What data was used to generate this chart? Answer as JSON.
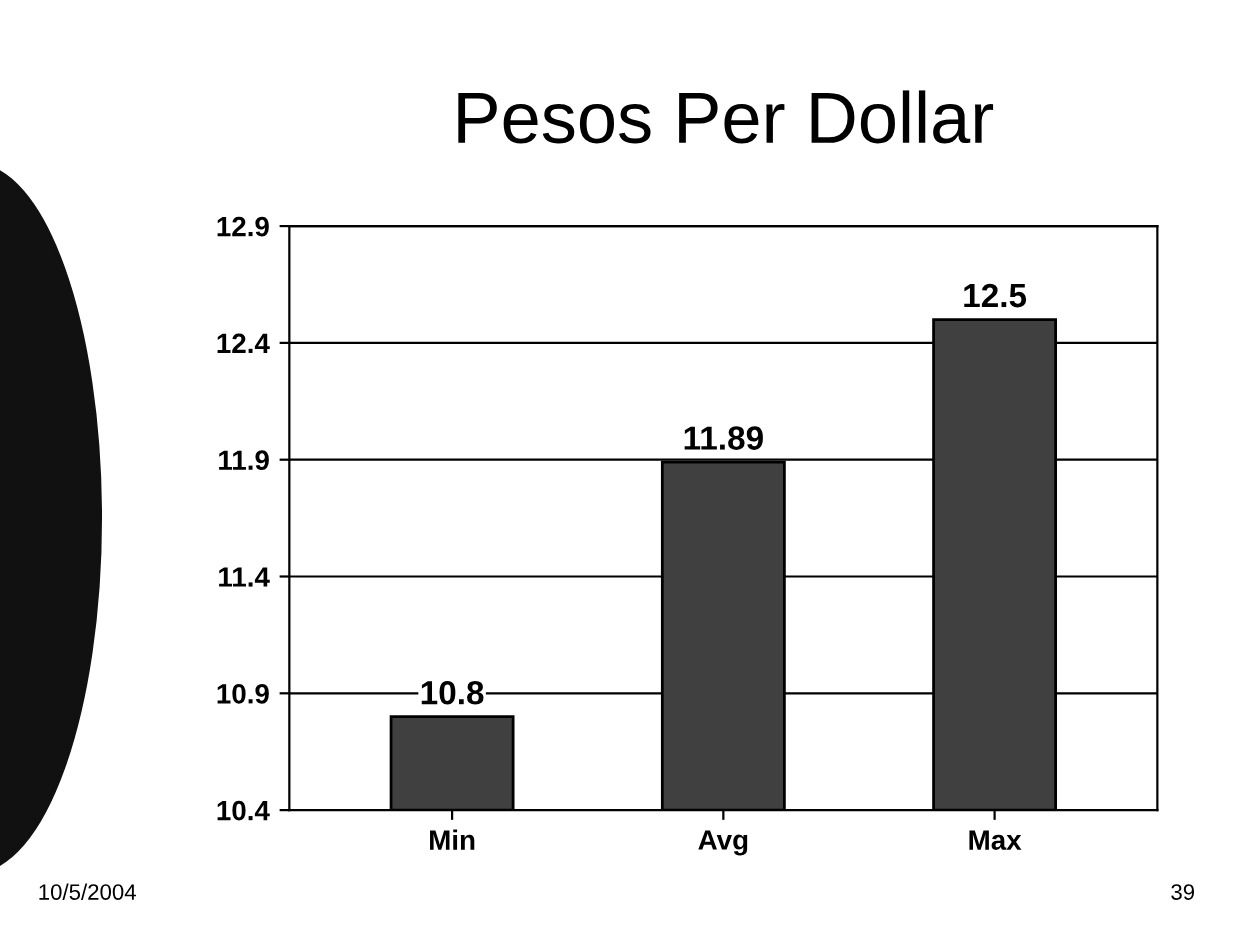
{
  "chart_data": {
    "type": "bar",
    "title": "Pesos Per Dollar",
    "categories": [
      "Min",
      "Avg",
      "Max"
    ],
    "values": [
      10.8,
      11.89,
      12.5
    ],
    "color": "#404040",
    "ylim": [
      10.4,
      12.9
    ],
    "yticks": [
      10.4,
      10.9,
      11.4,
      11.9,
      12.4,
      12.9
    ],
    "grid": "y",
    "data_labels": true,
    "annotations": [
      "10/5/2004",
      "39"
    ]
  }
}
